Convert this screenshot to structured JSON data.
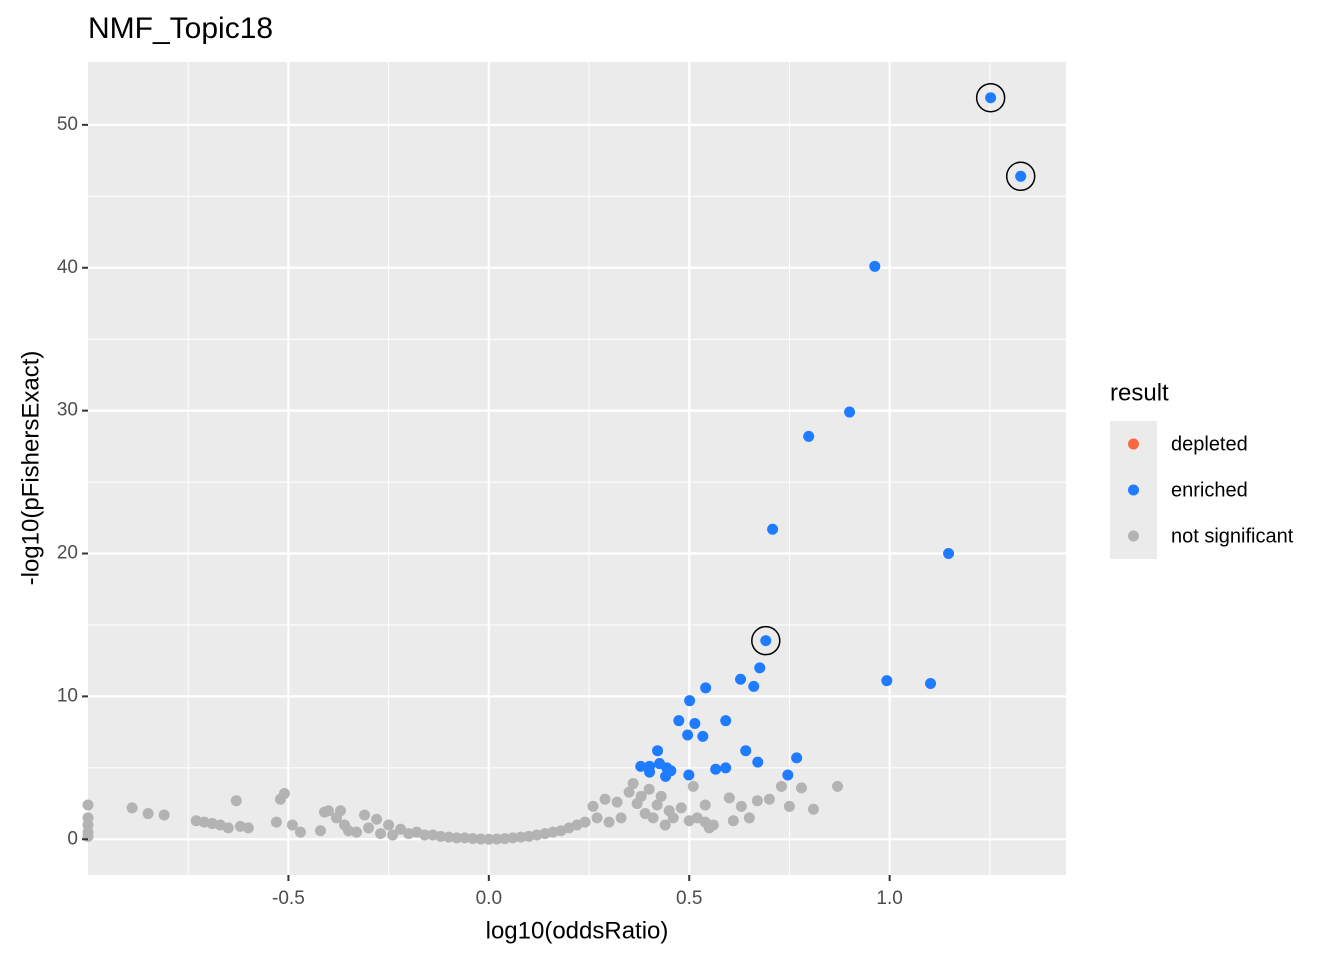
{
  "chart_data": {
    "type": "scatter",
    "title": "NMF_Topic18",
    "x_label": "log10(oddsRatio)",
    "y_label": "-log10(pFishersExact)",
    "xlim": [
      -1.0,
      1.44
    ],
    "ylim": [
      -2.5,
      54.4
    ],
    "xticks": [
      -0.5,
      {
        "value": 0,
        "label": "0.0"
      },
      0.5,
      {
        "value": 1,
        "label": "1.0"
      }
    ],
    "yticks": [
      0,
      10,
      20,
      30,
      40,
      50
    ],
    "grid": true,
    "legend_title": "result",
    "legend_position": "right",
    "series": [
      {
        "name": "depleted",
        "color": "#f8673f",
        "x": [],
        "y": []
      },
      {
        "name": "enriched",
        "color": "#1f7bff",
        "x": [
          1.252,
          1.327,
          0.963,
          0.9,
          0.798,
          0.708,
          1.147,
          0.691,
          0.676,
          0.628,
          0.661,
          0.541,
          0.993,
          1.102,
          0.501,
          0.474,
          0.514,
          0.591,
          0.496,
          0.534,
          0.641,
          0.421,
          0.379,
          0.401,
          0.426,
          0.444,
          0.454,
          0.401,
          0.441,
          0.499,
          0.566,
          0.591,
          0.671,
          0.768,
          0.746
        ],
        "y": [
          51.9,
          46.4,
          40.1,
          29.9,
          28.2,
          21.7,
          20.0,
          13.9,
          12.0,
          11.2,
          10.7,
          10.6,
          11.1,
          10.9,
          9.7,
          8.3,
          8.1,
          8.3,
          7.3,
          7.2,
          6.2,
          6.2,
          5.1,
          5.1,
          5.3,
          5.0,
          4.8,
          4.7,
          4.4,
          4.5,
          4.9,
          5.0,
          5.4,
          5.7,
          4.5
        ]
      },
      {
        "name": "not significant",
        "color": "#b3b3b3",
        "x": [
          -1.0,
          -1.0,
          -1.0,
          -1.0,
          -1.0,
          -0.89,
          -0.85,
          -0.81,
          -0.73,
          -0.71,
          -0.69,
          -0.67,
          -0.65,
          -0.63,
          -0.62,
          -0.6,
          -0.53,
          -0.51,
          -0.52,
          -0.49,
          -0.47,
          -0.42,
          -0.41,
          -0.4,
          -0.38,
          -0.37,
          -0.36,
          -0.35,
          -0.33,
          -0.31,
          -0.3,
          -0.28,
          -0.27,
          -0.25,
          -0.24,
          -0.22,
          -0.2,
          -0.18,
          -0.16,
          -0.14,
          -0.12,
          -0.1,
          -0.08,
          -0.06,
          -0.04,
          -0.02,
          0,
          0.02,
          0.04,
          0.06,
          0.08,
          0.1,
          0.12,
          0.14,
          0.16,
          0.18,
          0.2,
          0.22,
          0.24,
          0.26,
          0.27,
          0.29,
          0.3,
          0.32,
          0.33,
          0.35,
          0.36,
          0.37,
          0.38,
          0.39,
          0.4,
          0.41,
          0.42,
          0.43,
          0.44,
          0.45,
          0.46,
          0.48,
          0.5,
          0.51,
          0.52,
          0.54,
          0.55,
          0.56,
          0.6,
          0.63,
          0.65,
          0.67,
          0.7,
          0.73,
          0.75,
          0.78,
          0.81,
          0.87,
          0.54,
          0.61
        ],
        "y": [
          2.4,
          1.5,
          1.0,
          0.5,
          0.2,
          2.2,
          1.8,
          1.7,
          1.3,
          1.2,
          1.1,
          1.0,
          0.8,
          2.7,
          0.9,
          0.8,
          1.2,
          3.2,
          2.8,
          1.0,
          0.5,
          0.6,
          1.9,
          2.0,
          1.5,
          2.0,
          1.0,
          0.6,
          0.5,
          1.7,
          0.8,
          1.4,
          0.4,
          1.0,
          0.3,
          0.7,
          0.4,
          0.5,
          0.3,
          0.3,
          0.2,
          0.15,
          0.1,
          0.1,
          0.05,
          0.02,
          0,
          0.02,
          0.05,
          0.1,
          0.15,
          0.2,
          0.3,
          0.4,
          0.5,
          0.6,
          0.8,
          1.0,
          1.2,
          2.3,
          1.5,
          2.8,
          1.2,
          2.6,
          1.5,
          3.3,
          3.9,
          2.5,
          3.0,
          1.8,
          3.5,
          1.5,
          2.4,
          3.0,
          1.0,
          2.0,
          1.5,
          2.2,
          1.3,
          3.7,
          1.5,
          1.2,
          0.8,
          1.0,
          2.9,
          2.3,
          1.5,
          2.7,
          2.8,
          3.7,
          2.3,
          3.6,
          2.1,
          3.7,
          2.4,
          1.3
        ]
      }
    ],
    "highlighted": {
      "x": [
        1.252,
        1.327,
        0.691
      ],
      "y": [
        51.9,
        46.4,
        13.9
      ]
    }
  }
}
